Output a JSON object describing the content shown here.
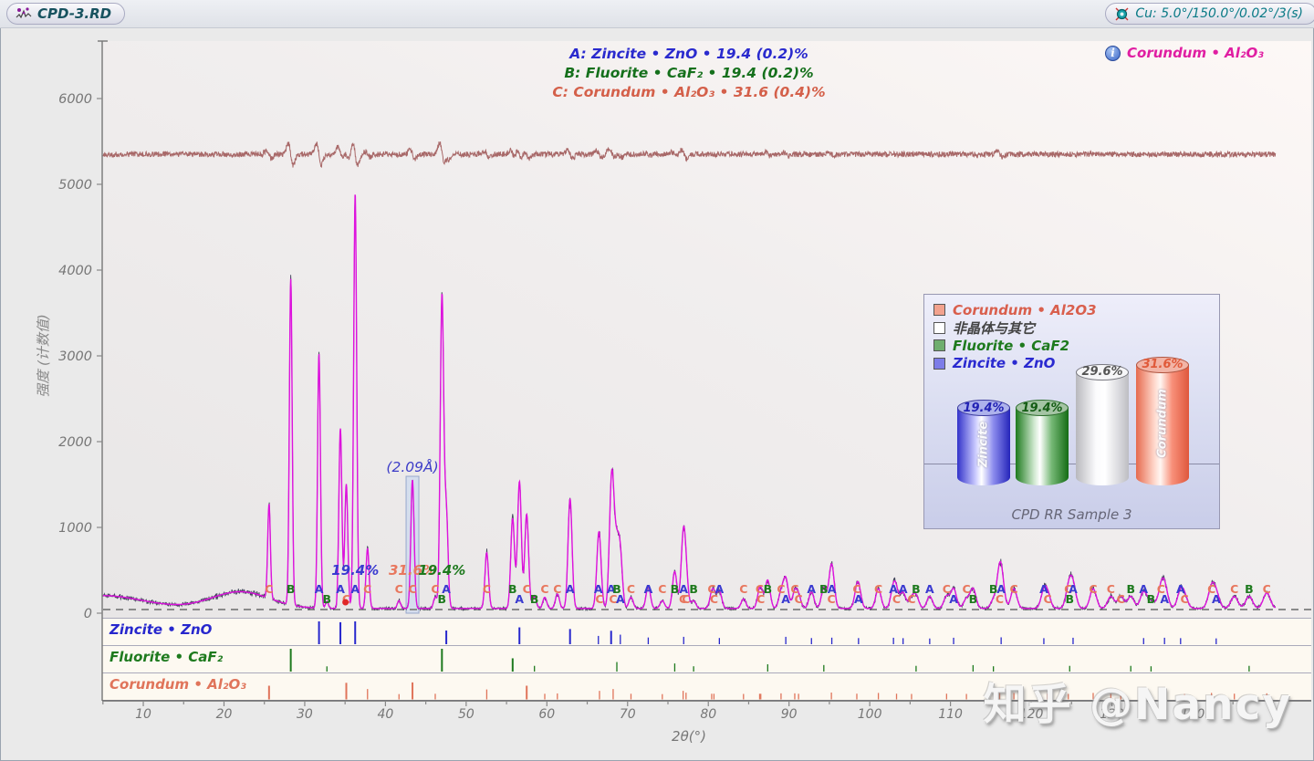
{
  "topbar": {
    "title": "CPD-3.RD",
    "scan_settings": "Cu: 5.0°/150.0°/0.02°/3(s)"
  },
  "phase_summary": [
    {
      "text": "A: Zincite • ZnO • 19.4 (0.2)%",
      "color": "#2a2ace"
    },
    {
      "text": "B: Fluorite • CaF₂ • 19.4 (0.2)%",
      "color": "#15701c"
    },
    {
      "text": "C: Corundum • Al₂O₃ • 31.6 (0.4)%",
      "color": "#d4604a"
    }
  ],
  "selected_phase": {
    "label": "Corundum • Al₂O₃",
    "info_glyph": "i",
    "color": "#e01ea2"
  },
  "annotations": {
    "d_spacing": "(2.09Å)",
    "selected_two_theta": 43.35,
    "peak_percents": [
      {
        "text": "19.4%",
        "two_theta": 36.25,
        "phase": "A"
      },
      {
        "text": "31.6%",
        "two_theta": 43.35,
        "phase": "C"
      },
      {
        "text": "19.4%",
        "two_theta": 47.0,
        "phase": "B"
      }
    ]
  },
  "watermark": "知乎 @Nancy",
  "legend_panel": {
    "items": [
      {
        "label": "Corundum • Al2O3",
        "swatch": "#f2a28e",
        "text_color": "#d95f4d"
      },
      {
        "label": "非晶体与其它",
        "swatch": "#ffffff",
        "text_color": "#444444"
      },
      {
        "label": "Fluorite • CaF2",
        "swatch": "#6fae6f",
        "text_color": "#1e7a1e"
      },
      {
        "label": "Zincite • ZnO",
        "swatch": "#7c7ce8",
        "text_color": "#2a2ad0"
      }
    ],
    "cylinders": [
      {
        "vertical_label": "Zincite",
        "pct": "19.4%",
        "value": 19.4,
        "color_key": "blue"
      },
      {
        "vertical_label": "",
        "pct": "19.4%",
        "value": 19.4,
        "color_key": "green"
      },
      {
        "vertical_label": "",
        "pct": "29.6%",
        "value": 29.6,
        "color_key": "white"
      },
      {
        "vertical_label": "Corundum",
        "pct": "31.6%",
        "value": 31.6,
        "color_key": "salmon"
      }
    ],
    "caption": "CPD RR Sample 3"
  },
  "chart_data": {
    "type": "line",
    "xlabel": "2θ(°)",
    "ylabel": "强度 (计数值)",
    "xlim": [
      5,
      154.5
    ],
    "ylim": [
      0,
      6650
    ],
    "x_ticks": [
      10,
      20,
      30,
      40,
      50,
      60,
      70,
      80,
      90,
      100,
      110,
      120,
      130,
      140
    ],
    "y_ticks": [
      0,
      1000,
      2000,
      3000,
      4000,
      5000,
      6000
    ],
    "difference_level": 5350,
    "baseline_level": 40,
    "background": {
      "base": 55,
      "start_decay": {
        "center": 5,
        "sigma": 5,
        "amp": 150
      },
      "amorphous_hump": {
        "center": 22,
        "sigma": 3.6,
        "amp": 195
      }
    },
    "trace_colors": {
      "measured": "#32324e",
      "calculated": "#de12de",
      "difference": "#a86868"
    },
    "phases": [
      {
        "letter": "A",
        "name": "Zincite",
        "formula": "ZnO",
        "color": "#3a3ad0",
        "peaks": [
          [
            31.77,
            2960
          ],
          [
            34.42,
            2100
          ],
          [
            36.25,
            4850
          ],
          [
            47.54,
            1100
          ],
          [
            56.6,
            1480
          ],
          [
            62.87,
            1280
          ],
          [
            66.38,
            450
          ],
          [
            67.96,
            1070
          ],
          [
            69.1,
            600
          ],
          [
            72.56,
            260
          ],
          [
            76.95,
            340
          ],
          [
            81.37,
            200
          ],
          [
            89.6,
            340
          ],
          [
            92.78,
            190
          ],
          [
            95.3,
            240
          ],
          [
            98.61,
            190
          ],
          [
            102.94,
            230
          ],
          [
            104.13,
            180
          ],
          [
            107.43,
            140
          ],
          [
            110.39,
            230
          ],
          [
            116.28,
            280
          ],
          [
            121.57,
            180
          ],
          [
            125.19,
            230
          ],
          [
            133.93,
            190
          ],
          [
            136.52,
            230
          ],
          [
            138.51,
            180
          ],
          [
            142.92,
            150
          ]
        ]
      },
      {
        "letter": "B",
        "name": "Fluorite",
        "formula": "CaF₂",
        "color": "#1e7a1e",
        "peaks": [
          [
            28.27,
            3800
          ],
          [
            32.75,
            80
          ],
          [
            47.0,
            3630
          ],
          [
            55.76,
            1050
          ],
          [
            58.46,
            140
          ],
          [
            68.67,
            600
          ],
          [
            75.84,
            430
          ],
          [
            78.18,
            90
          ],
          [
            87.36,
            330
          ],
          [
            94.31,
            240
          ],
          [
            105.74,
            140
          ],
          [
            112.8,
            230
          ],
          [
            115.32,
            90
          ],
          [
            124.77,
            140
          ],
          [
            132.34,
            140
          ],
          [
            134.85,
            90
          ],
          [
            147.0,
            140
          ]
        ]
      },
      {
        "letter": "C",
        "name": "Corundum",
        "formula": "Al₂O₃",
        "color": "#e8775e",
        "peaks": [
          [
            25.58,
            1100
          ],
          [
            35.15,
            1450
          ],
          [
            37.78,
            700
          ],
          [
            41.68,
            90
          ],
          [
            43.35,
            1500
          ],
          [
            46.17,
            130
          ],
          [
            52.55,
            650
          ],
          [
            57.5,
            1100
          ],
          [
            59.74,
            130
          ],
          [
            61.3,
            170
          ],
          [
            66.52,
            480
          ],
          [
            68.21,
            700
          ],
          [
            70.42,
            130
          ],
          [
            74.3,
            90
          ],
          [
            76.88,
            480
          ],
          [
            77.24,
            260
          ],
          [
            80.42,
            130
          ],
          [
            80.7,
            130
          ],
          [
            84.36,
            110
          ],
          [
            86.36,
            130
          ],
          [
            86.5,
            130
          ],
          [
            89.01,
            180
          ],
          [
            90.71,
            180
          ],
          [
            91.18,
            130
          ],
          [
            95.25,
            280
          ],
          [
            98.4,
            140
          ],
          [
            101.07,
            230
          ],
          [
            103.32,
            140
          ],
          [
            105.18,
            110
          ],
          [
            109.52,
            140
          ],
          [
            111.98,
            110
          ],
          [
            116.09,
            280
          ],
          [
            117.86,
            230
          ],
          [
            122.04,
            140
          ],
          [
            124.6,
            110
          ],
          [
            127.68,
            230
          ],
          [
            129.87,
            140
          ],
          [
            131.1,
            140
          ],
          [
            136.08,
            180
          ],
          [
            139.0,
            110
          ],
          [
            142.34,
            230
          ],
          [
            145.17,
            140
          ],
          [
            149.19,
            180
          ]
        ]
      }
    ],
    "strips": [
      {
        "label": "Zincite • ZnO",
        "phase": "A",
        "color": "#2727cd"
      },
      {
        "label": "Fluorite • CaF₂",
        "phase": "B",
        "color": "#1e7a1e"
      },
      {
        "label": "Corundum • Al₂O₃",
        "phase": "C",
        "color": "#e0745a"
      }
    ]
  }
}
